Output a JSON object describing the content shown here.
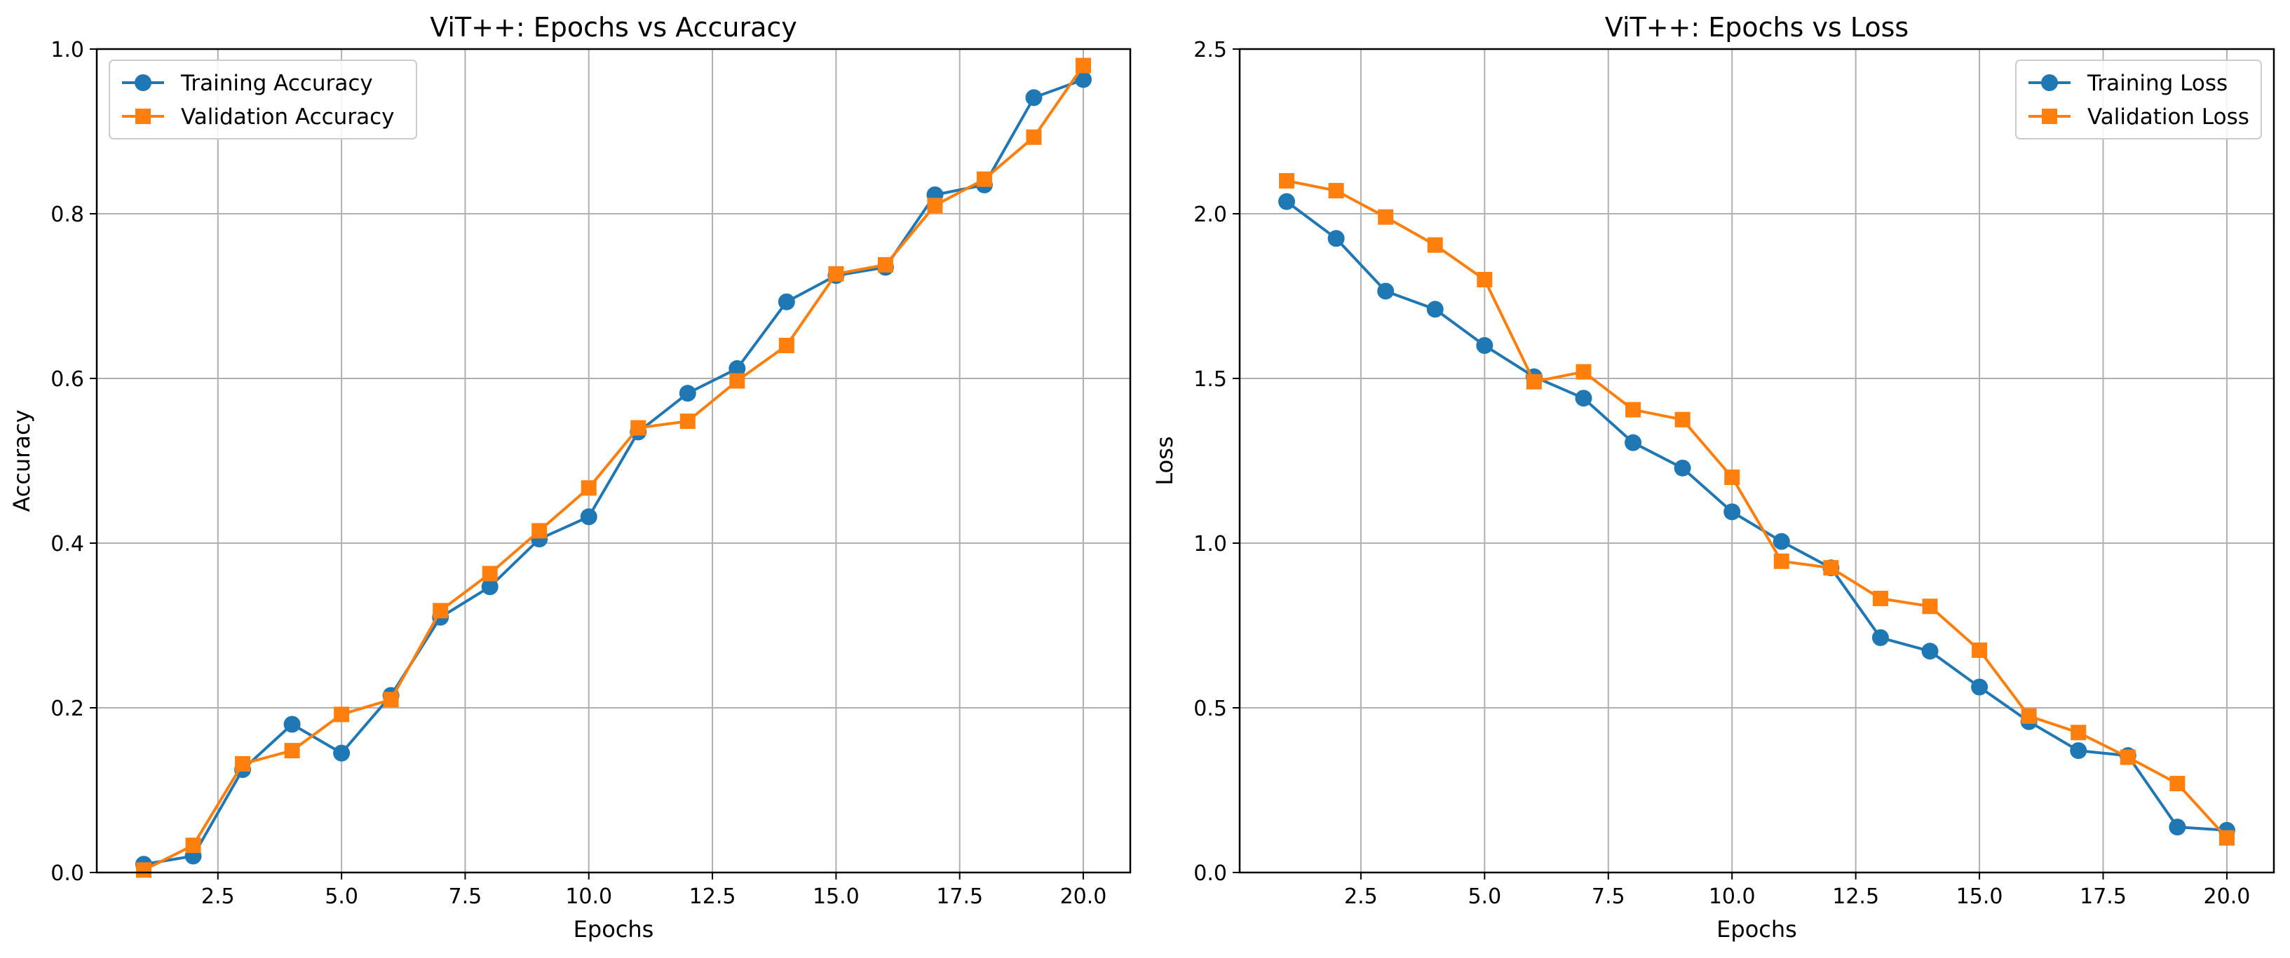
{
  "chart_data": [
    {
      "type": "line",
      "title": "ViT++: Epochs vs Accuracy",
      "xlabel": "Epochs",
      "ylabel": "Accuracy",
      "xlim": [
        0.05,
        20.95
      ],
      "ylim": [
        0.0,
        1.0
      ],
      "xticks": [
        2.5,
        5.0,
        7.5,
        10.0,
        12.5,
        15.0,
        17.5,
        20.0
      ],
      "xtick_labels": [
        "2.5",
        "5.0",
        "7.5",
        "10.0",
        "12.5",
        "15.0",
        "17.5",
        "20.0"
      ],
      "yticks": [
        0.0,
        0.2,
        0.4,
        0.6,
        0.8,
        1.0
      ],
      "ytick_labels": [
        "0.0",
        "0.2",
        "0.4",
        "0.6",
        "0.8",
        "1.0"
      ],
      "grid": true,
      "legend_position": "top-left",
      "x": [
        1,
        2,
        3,
        4,
        5,
        6,
        7,
        8,
        9,
        10,
        11,
        12,
        13,
        14,
        15,
        16,
        17,
        18,
        19,
        20
      ],
      "series": [
        {
          "name": "Training Accuracy",
          "color": "#1f77b4",
          "marker": "circle",
          "values": [
            0.01,
            0.02,
            0.125,
            0.18,
            0.145,
            0.215,
            0.31,
            0.347,
            0.405,
            0.432,
            0.535,
            0.582,
            0.612,
            0.693,
            0.725,
            0.735,
            0.823,
            0.835,
            0.941,
            0.963
          ]
        },
        {
          "name": "Validation Accuracy",
          "color": "#ff7f0e",
          "marker": "square",
          "values": [
            0.003,
            0.033,
            0.132,
            0.148,
            0.192,
            0.21,
            0.318,
            0.363,
            0.415,
            0.467,
            0.54,
            0.548,
            0.597,
            0.64,
            0.727,
            0.738,
            0.81,
            0.842,
            0.893,
            0.98
          ]
        }
      ]
    },
    {
      "type": "line",
      "title": "ViT++: Epochs vs Loss",
      "xlabel": "Epochs",
      "ylabel": "Loss",
      "xlim": [
        0.05,
        20.95
      ],
      "ylim": [
        0.0,
        2.5
      ],
      "xticks": [
        2.5,
        5.0,
        7.5,
        10.0,
        12.5,
        15.0,
        17.5,
        20.0
      ],
      "xtick_labels": [
        "2.5",
        "5.0",
        "7.5",
        "10.0",
        "12.5",
        "15.0",
        "17.5",
        "20.0"
      ],
      "yticks": [
        0.0,
        0.5,
        1.0,
        1.5,
        2.0,
        2.5
      ],
      "ytick_labels": [
        "0.0",
        "0.5",
        "1.0",
        "1.5",
        "2.0",
        "2.5"
      ],
      "grid": true,
      "legend_position": "top-right",
      "x": [
        1,
        2,
        3,
        4,
        5,
        6,
        7,
        8,
        9,
        10,
        11,
        12,
        13,
        14,
        15,
        16,
        17,
        18,
        19,
        20
      ],
      "series": [
        {
          "name": "Training Loss",
          "color": "#1f77b4",
          "marker": "circle",
          "values": [
            2.037,
            1.925,
            1.765,
            1.71,
            1.6,
            1.505,
            1.44,
            1.305,
            1.228,
            1.095,
            1.005,
            0.925,
            0.713,
            0.672,
            0.563,
            0.458,
            0.37,
            0.355,
            0.138,
            0.128
          ]
        },
        {
          "name": "Validation Loss",
          "color": "#ff7f0e",
          "marker": "square",
          "values": [
            2.1,
            2.07,
            1.99,
            1.905,
            1.8,
            1.49,
            1.52,
            1.405,
            1.375,
            1.2,
            0.945,
            0.925,
            0.832,
            0.808,
            0.675,
            0.475,
            0.425,
            0.35,
            0.27,
            0.105
          ]
        }
      ]
    }
  ]
}
